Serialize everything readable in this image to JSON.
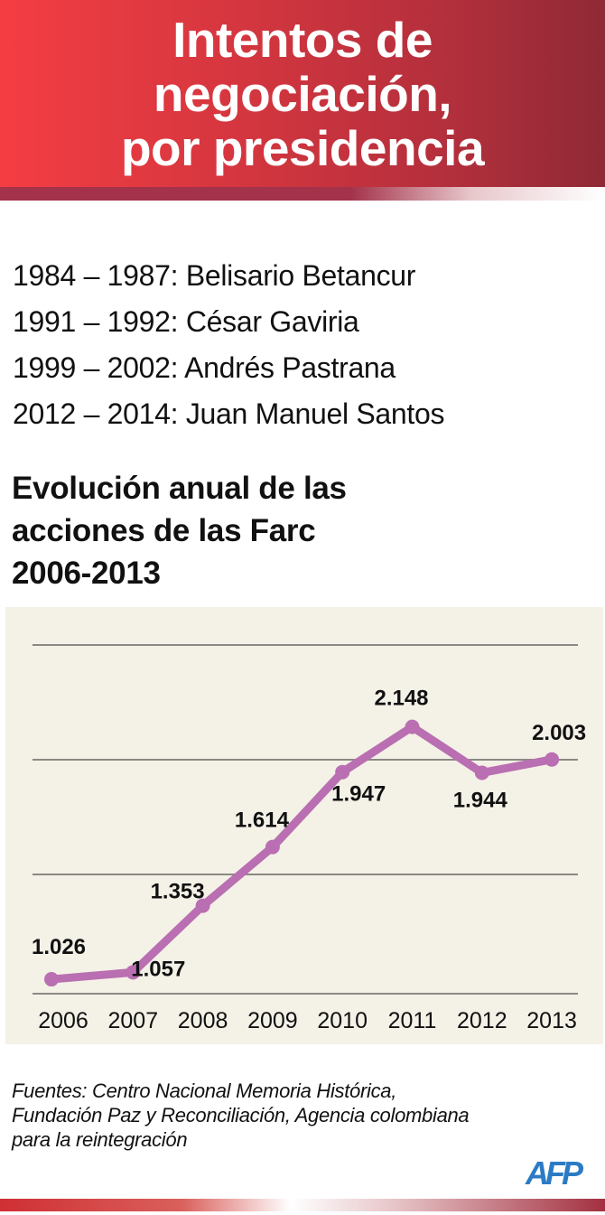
{
  "header": {
    "title_lines": [
      "Intentos de",
      "negociación,",
      "por presidencia"
    ]
  },
  "presidencies": [
    "1984 – 1987: Belisario Betancur",
    "1991 – 1992: César Gaviria",
    "1999 – 2002: Andrés Pastrana",
    "2012 – 2014: Juan Manuel Santos"
  ],
  "subtitle_lines": [
    "Evolución anual de las",
    "acciones de las Farc",
    "2006-2013"
  ],
  "chart_data": {
    "type": "line",
    "title": "Evolución anual de las acciones de las Farc 2006-2013",
    "categories": [
      "2006",
      "2007",
      "2008",
      "2009",
      "2010",
      "2011",
      "2012",
      "2013"
    ],
    "series": [
      {
        "name": "Acciones de las Farc",
        "values": [
          1026,
          1057,
          1353,
          1614,
          1947,
          2148,
          1944,
          2003
        ]
      }
    ],
    "data_labels": [
      "1.026",
      "1.057",
      "1.353",
      "1.614",
      "1.947",
      "2.148",
      "1.944",
      "2.003"
    ],
    "xlabel": "",
    "ylabel": "",
    "ylim": [
      962,
      2512
    ],
    "gridlines": [
      962,
      1492,
      2002,
      2512
    ],
    "grid": true,
    "colors": {
      "line": "#b96fb1",
      "grid": "#8a8a84",
      "background": "#f4f1e7"
    }
  },
  "sources_lines": [
    "Fuentes: Centro Nacional Memoria Histórica,",
    "Fundación Paz y Reconciliación, Agencia colombiana",
    "para la reintegración"
  ],
  "logo": {
    "text": "AFP",
    "color": "#2b7bc4"
  }
}
